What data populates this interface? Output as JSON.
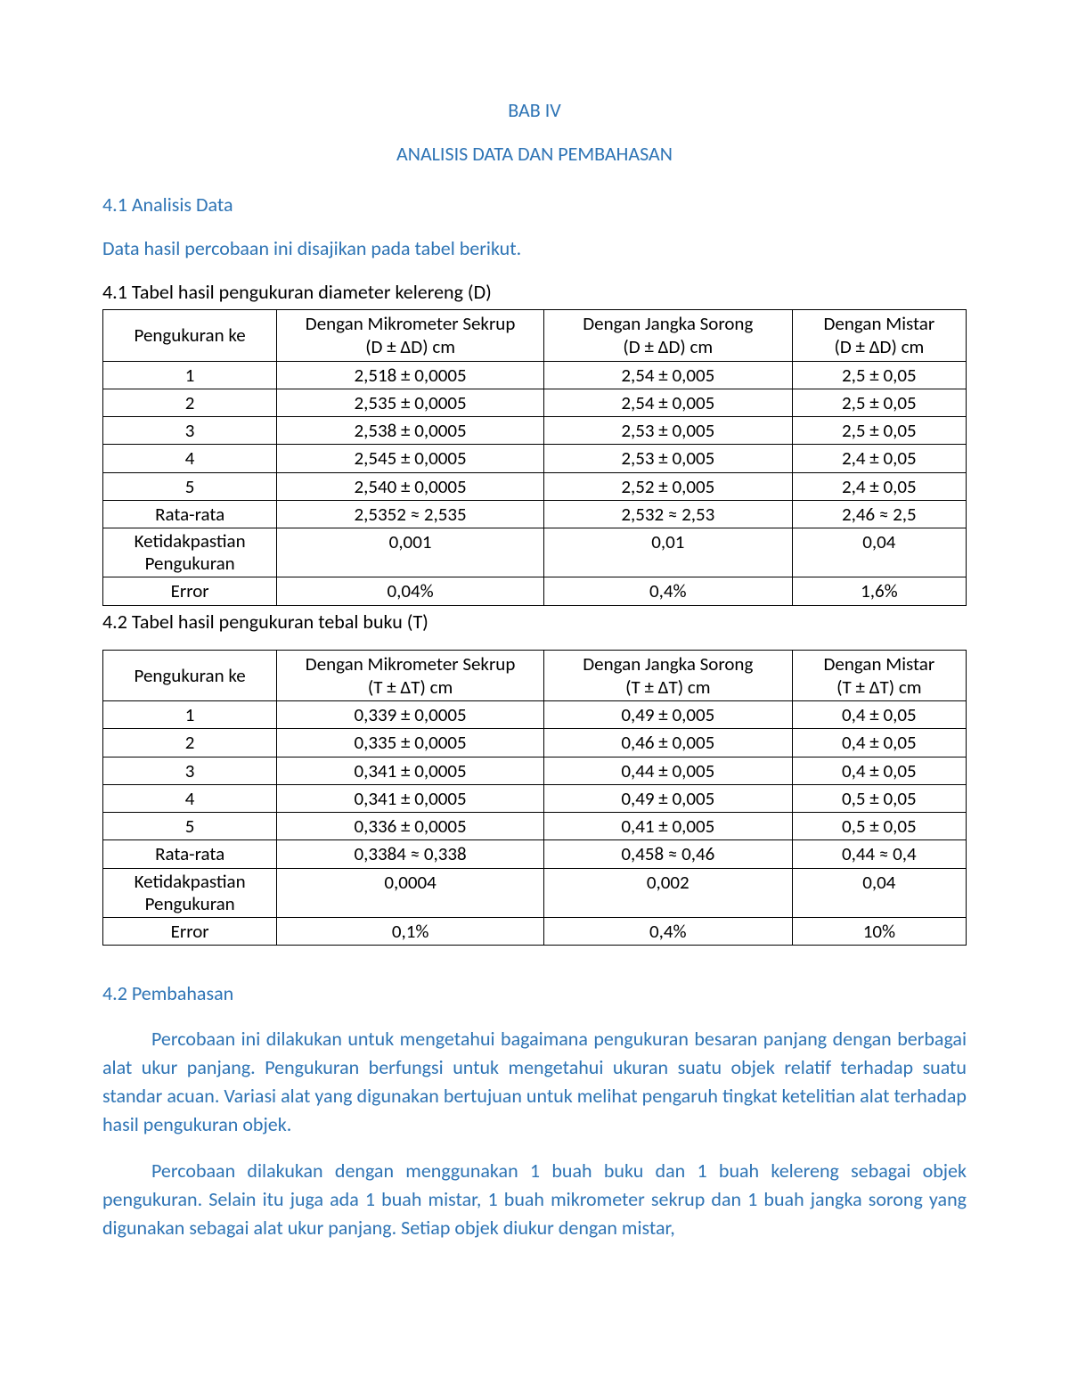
{
  "chapter": {
    "title": "BAB IV",
    "subtitle": "ANALISIS DATA DAN PEMBAHASAN"
  },
  "section1": {
    "heading": "4.1 Analisis Data",
    "intro": "Data hasil percobaan ini disajikan pada tabel berikut."
  },
  "table1": {
    "caption": "4.1 Tabel hasil pengukuran diameter kelereng (D)",
    "headers": {
      "c0": "Pengukuran ke",
      "c1_l1": "Dengan Mikrometer Sekrup",
      "c1_l2": "(D ± ΔD) cm",
      "c2_l1": "Dengan Jangka Sorong",
      "c2_l2": "(D ± ΔD) cm",
      "c3_l1": "Dengan Mistar",
      "c3_l2": "(D ± ΔD) cm"
    },
    "rows": [
      {
        "c0": "1",
        "c1": "2,518 ± 0,0005",
        "c2": "2,54 ± 0,005",
        "c3": "2,5 ± 0,05"
      },
      {
        "c0": "2",
        "c1": "2,535 ± 0,0005",
        "c2": "2,54 ± 0,005",
        "c3": "2,5 ± 0,05"
      },
      {
        "c0": "3",
        "c1": "2,538 ± 0,0005",
        "c2": "2,53 ± 0,005",
        "c3": "2,5 ± 0,05"
      },
      {
        "c0": "4",
        "c1": "2,545 ± 0,0005",
        "c2": "2,53 ± 0,005",
        "c3": "2,4 ± 0,05"
      },
      {
        "c0": "5",
        "c1": "2,540 ± 0,0005",
        "c2": "2,52 ± 0,005",
        "c3": "2,4 ± 0,05"
      },
      {
        "c0": "Rata-rata",
        "c1": "2,5352 ≈ 2,535",
        "c2": "2,532 ≈ 2,53",
        "c3": "2,46 ≈ 2,5"
      },
      {
        "c0": "Ketidakpastian Pengukuran",
        "c1": "0,001",
        "c2": "0,01",
        "c3": "0,04"
      },
      {
        "c0": "Error",
        "c1": "0,04%",
        "c2": "0,4%",
        "c3": "1,6%"
      }
    ]
  },
  "table2": {
    "caption": "4.2 Tabel hasil pengukuran tebal buku (T)",
    "headers": {
      "c0": "Pengukuran ke",
      "c1_l1": "Dengan Mikrometer Sekrup",
      "c1_l2": "(T ± ΔT) cm",
      "c2_l1": "Dengan Jangka Sorong",
      "c2_l2": "(T ± ΔT) cm",
      "c3_l1": "Dengan Mistar",
      "c3_l2": "(T ± ΔT) cm"
    },
    "rows": [
      {
        "c0": "1",
        "c1": "0,339 ± 0,0005",
        "c2": "0,49 ± 0,005",
        "c3": "0,4 ± 0,05"
      },
      {
        "c0": "2",
        "c1": "0,335 ± 0,0005",
        "c2": "0,46 ± 0,005",
        "c3": "0,4 ± 0,05"
      },
      {
        "c0": "3",
        "c1": "0,341 ± 0,0005",
        "c2": "0,44 ± 0,005",
        "c3": "0,4 ± 0,05"
      },
      {
        "c0": "4",
        "c1": "0,341 ± 0,0005",
        "c2": "0,49 ± 0,005",
        "c3": "0,5 ± 0,05"
      },
      {
        "c0": "5",
        "c1": "0,336 ± 0,0005",
        "c2": "0,41 ± 0,005",
        "c3": "0,5 ± 0,05"
      },
      {
        "c0": "Rata-rata",
        "c1": "0,3384 ≈ 0,338",
        "c2": "0,458 ≈ 0,46",
        "c3": "0,44 ≈ 0,4"
      },
      {
        "c0": "Ketidakpastian Pengukuran",
        "c1": "0,0004",
        "c2": "0,002",
        "c3": "0,04"
      },
      {
        "c0": "Error",
        "c1": "0,1%",
        "c2": "0,4%",
        "c3": "10%"
      }
    ]
  },
  "section2": {
    "heading": "4.2 Pembahasan",
    "p1": "Percobaan ini dilakukan untuk mengetahui bagaimana pengukuran besaran panjang dengan berbagai alat ukur panjang.  Pengukuran berfungsi untuk mengetahui ukuran suatu objek relatif terhadap suatu standar acuan. Variasi alat yang digunakan bertujuan untuk melihat pengaruh tingkat ketelitian alat terhadap hasil pengukuran objek.",
    "p2": "Percobaan dilakukan dengan menggunakan 1 buah buku dan 1 buah kelereng sebagai objek pengukuran. Selain itu juga ada 1 buah mistar, 1 buah mikrometer sekrup dan 1 buah jangka sorong yang digunakan sebagai alat ukur panjang. Setiap objek diukur dengan mistar,"
  },
  "colors": {
    "heading": "#2e74b5",
    "body": "#000000",
    "background": "#ffffff",
    "table_border": "#000000"
  }
}
